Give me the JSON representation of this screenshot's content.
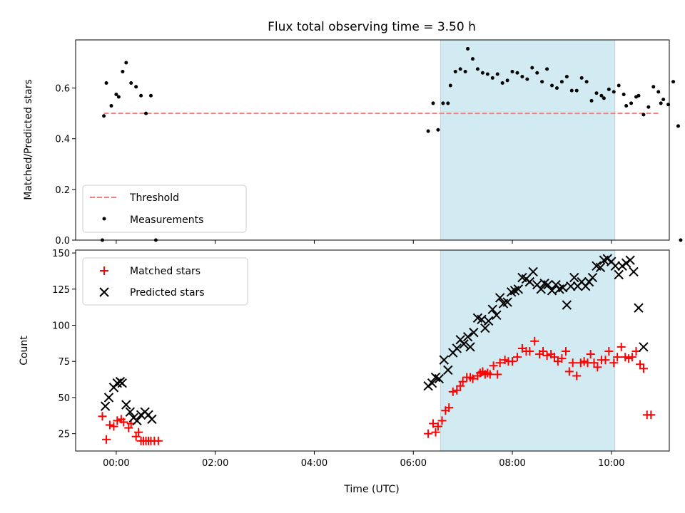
{
  "chart_data": {
    "title": "Flux total observing time = 3.50 h",
    "xlabel": "Time (UTC)",
    "x_unit": "hours UTC",
    "x_ticks": [
      {
        "value": 0,
        "label": "00:00"
      },
      {
        "value": 2,
        "label": "02:00"
      },
      {
        "value": 4,
        "label": "04:00"
      },
      {
        "value": 6,
        "label": "06:00"
      },
      {
        "value": 8,
        "label": "08:00"
      },
      {
        "value": 10,
        "label": "10:00"
      }
    ],
    "xlim": [
      -0.82,
      11.17
    ],
    "shaded_interval": {
      "x0": 6.55,
      "x1": 10.07,
      "color": "#add8e6"
    },
    "panels": [
      {
        "type": "scatter",
        "ylabel": "Matched/Predicted stars",
        "ylim": [
          0.0,
          0.79
        ],
        "y_ticks": [
          0.0,
          0.2,
          0.4,
          0.6
        ],
        "y_tick_labels": [
          "0.0",
          "0.2",
          "0.4",
          "0.6"
        ],
        "legend_position": "lower-left",
        "threshold": {
          "name": "Threshold",
          "value": 0.5,
          "x0": -0.25,
          "x1": 10.95,
          "color": "#f08080"
        },
        "series": [
          {
            "name": "Measurements",
            "color": "#000000",
            "marker": "dot",
            "points": [
              [
                -0.28,
                0.0
              ],
              [
                -0.25,
                0.49
              ],
              [
                -0.2,
                0.62
              ],
              [
                -0.1,
                0.53
              ],
              [
                0.0,
                0.575
              ],
              [
                0.05,
                0.565
              ],
              [
                0.13,
                0.665
              ],
              [
                0.2,
                0.7
              ],
              [
                0.3,
                0.62
              ],
              [
                0.4,
                0.605
              ],
              [
                0.5,
                0.57
              ],
              [
                0.6,
                0.5
              ],
              [
                0.7,
                0.57
              ],
              [
                0.8,
                0.0
              ],
              [
                6.3,
                0.43
              ],
              [
                6.4,
                0.54
              ],
              [
                6.5,
                0.435
              ],
              [
                6.6,
                0.54
              ],
              [
                6.7,
                0.54
              ],
              [
                6.75,
                0.61
              ],
              [
                6.85,
                0.665
              ],
              [
                6.95,
                0.675
              ],
              [
                7.05,
                0.665
              ],
              [
                7.1,
                0.755
              ],
              [
                7.2,
                0.715
              ],
              [
                7.3,
                0.675
              ],
              [
                7.4,
                0.66
              ],
              [
                7.5,
                0.655
              ],
              [
                7.6,
                0.64
              ],
              [
                7.7,
                0.655
              ],
              [
                7.8,
                0.62
              ],
              [
                7.9,
                0.63
              ],
              [
                8.0,
                0.665
              ],
              [
                8.1,
                0.66
              ],
              [
                8.2,
                0.645
              ],
              [
                8.3,
                0.635
              ],
              [
                8.4,
                0.68
              ],
              [
                8.5,
                0.66
              ],
              [
                8.6,
                0.625
              ],
              [
                8.7,
                0.675
              ],
              [
                8.8,
                0.61
              ],
              [
                8.9,
                0.6
              ],
              [
                9.0,
                0.625
              ],
              [
                9.1,
                0.645
              ],
              [
                9.2,
                0.59
              ],
              [
                9.3,
                0.59
              ],
              [
                9.4,
                0.64
              ],
              [
                9.5,
                0.625
              ],
              [
                9.6,
                0.55
              ],
              [
                9.7,
                0.58
              ],
              [
                9.8,
                0.57
              ],
              [
                9.85,
                0.56
              ],
              [
                9.95,
                0.595
              ],
              [
                10.05,
                0.585
              ],
              [
                10.15,
                0.61
              ],
              [
                10.25,
                0.575
              ],
              [
                10.3,
                0.53
              ],
              [
                10.4,
                0.54
              ],
              [
                10.5,
                0.565
              ],
              [
                10.55,
                0.57
              ],
              [
                10.65,
                0.495
              ],
              [
                10.75,
                0.525
              ],
              [
                10.85,
                0.605
              ],
              [
                10.95,
                0.585
              ],
              [
                11.0,
                0.54
              ],
              [
                11.05,
                0.555
              ],
              [
                11.15,
                0.535
              ],
              [
                11.25,
                0.625
              ],
              [
                11.35,
                0.45
              ],
              [
                11.4,
                0.0
              ]
            ]
          }
        ]
      },
      {
        "type": "scatter",
        "ylabel": "Count",
        "ylim": [
          13,
          152
        ],
        "y_ticks": [
          25,
          50,
          75,
          100,
          125,
          150
        ],
        "y_tick_labels": [
          "25",
          "50",
          "75",
          "100",
          "125",
          "150"
        ],
        "legend_position": "upper-left",
        "series": [
          {
            "name": "Matched stars",
            "color": "#ff0000",
            "marker": "plus",
            "points": [
              [
                -0.28,
                37
              ],
              [
                -0.2,
                21
              ],
              [
                -0.13,
                31
              ],
              [
                -0.05,
                30
              ],
              [
                0.02,
                34
              ],
              [
                0.1,
                35
              ],
              [
                0.15,
                33
              ],
              [
                0.25,
                29
              ],
              [
                0.3,
                32
              ],
              [
                0.4,
                23
              ],
              [
                0.45,
                26
              ],
              [
                0.5,
                20
              ],
              [
                0.55,
                20
              ],
              [
                0.6,
                20
              ],
              [
                0.65,
                20
              ],
              [
                0.7,
                20
              ],
              [
                0.77,
                20
              ],
              [
                0.85,
                20
              ],
              [
                6.3,
                25
              ],
              [
                6.4,
                32
              ],
              [
                6.45,
                26
              ],
              [
                6.5,
                30
              ],
              [
                6.58,
                34
              ],
              [
                6.65,
                41
              ],
              [
                6.72,
                43
              ],
              [
                6.8,
                54
              ],
              [
                6.88,
                55
              ],
              [
                6.95,
                58
              ],
              [
                7.0,
                61
              ],
              [
                7.08,
                64
              ],
              [
                7.15,
                64
              ],
              [
                7.2,
                63
              ],
              [
                7.3,
                65
              ],
              [
                7.35,
                67
              ],
              [
                7.4,
                68
              ],
              [
                7.45,
                66
              ],
              [
                7.5,
                67
              ],
              [
                7.55,
                66
              ],
              [
                7.62,
                72
              ],
              [
                7.7,
                66
              ],
              [
                7.75,
                74
              ],
              [
                7.85,
                76
              ],
              [
                7.92,
                75
              ],
              [
                8.0,
                75
              ],
              [
                8.1,
                78
              ],
              [
                8.2,
                84
              ],
              [
                8.28,
                82
              ],
              [
                8.35,
                82
              ],
              [
                8.45,
                89
              ],
              [
                8.55,
                80
              ],
              [
                8.62,
                82
              ],
              [
                8.7,
                79
              ],
              [
                8.78,
                80
              ],
              [
                8.85,
                78
              ],
              [
                8.92,
                75
              ],
              [
                9.0,
                77
              ],
              [
                9.08,
                82
              ],
              [
                9.15,
                68
              ],
              [
                9.22,
                74
              ],
              [
                9.3,
                65
              ],
              [
                9.38,
                74
              ],
              [
                9.45,
                75
              ],
              [
                9.52,
                74
              ],
              [
                9.58,
                80
              ],
              [
                9.65,
                74
              ],
              [
                9.72,
                71
              ],
              [
                9.8,
                76
              ],
              [
                9.88,
                76
              ],
              [
                9.95,
                82
              ],
              [
                10.05,
                74
              ],
              [
                10.12,
                78
              ],
              [
                10.2,
                85
              ],
              [
                10.28,
                78
              ],
              [
                10.35,
                77
              ],
              [
                10.42,
                78
              ],
              [
                10.5,
                82
              ],
              [
                10.58,
                73
              ],
              [
                10.65,
                70
              ],
              [
                10.72,
                38
              ],
              [
                10.8,
                38
              ]
            ]
          },
          {
            "name": "Predicted stars",
            "color": "#000000",
            "marker": "x",
            "points": [
              [
                -0.22,
                44
              ],
              [
                -0.15,
                50
              ],
              [
                -0.05,
                57
              ],
              [
                0.02,
                60
              ],
              [
                0.08,
                61
              ],
              [
                0.12,
                60
              ],
              [
                0.2,
                45
              ],
              [
                0.28,
                40
              ],
              [
                0.35,
                36
              ],
              [
                0.42,
                34
              ],
              [
                0.5,
                38
              ],
              [
                0.58,
                40
              ],
              [
                0.65,
                38
              ],
              [
                0.72,
                35
              ],
              [
                6.3,
                58
              ],
              [
                6.38,
                60
              ],
              [
                6.45,
                64
              ],
              [
                6.52,
                63
              ],
              [
                6.62,
                76
              ],
              [
                6.7,
                69
              ],
              [
                6.8,
                81
              ],
              [
                6.88,
                84
              ],
              [
                6.95,
                90
              ],
              [
                7.02,
                87
              ],
              [
                7.1,
                92
              ],
              [
                7.15,
                85
              ],
              [
                7.22,
                95
              ],
              [
                7.3,
                105
              ],
              [
                7.38,
                104
              ],
              [
                7.45,
                98
              ],
              [
                7.52,
                103
              ],
              [
                7.6,
                111
              ],
              [
                7.68,
                107
              ],
              [
                7.75,
                119
              ],
              [
                7.82,
                115
              ],
              [
                7.9,
                116
              ],
              [
                7.98,
                123
              ],
              [
                8.05,
                124
              ],
              [
                8.12,
                125
              ],
              [
                8.2,
                133
              ],
              [
                8.28,
                132
              ],
              [
                8.35,
                130
              ],
              [
                8.42,
                137
              ],
              [
                8.5,
                128
              ],
              [
                8.58,
                125
              ],
              [
                8.65,
                129
              ],
              [
                8.72,
                128
              ],
              [
                8.8,
                124
              ],
              [
                8.88,
                128
              ],
              [
                8.95,
                125
              ],
              [
                9.02,
                126
              ],
              [
                9.1,
                114
              ],
              [
                9.18,
                127
              ],
              [
                9.25,
                133
              ],
              [
                9.32,
                127
              ],
              [
                9.4,
                130
              ],
              [
                9.48,
                127
              ],
              [
                9.55,
                130
              ],
              [
                9.62,
                133
              ],
              [
                9.7,
                141
              ],
              [
                9.78,
                140
              ],
              [
                9.85,
                145
              ],
              [
                9.92,
                146
              ],
              [
                10.0,
                144
              ],
              [
                10.08,
                141
              ],
              [
                10.15,
                135
              ],
              [
                10.22,
                141
              ],
              [
                10.3,
                143
              ],
              [
                10.38,
                145
              ],
              [
                10.45,
                137
              ],
              [
                10.55,
                112
              ],
              [
                10.65,
                85
              ]
            ]
          }
        ]
      }
    ]
  }
}
